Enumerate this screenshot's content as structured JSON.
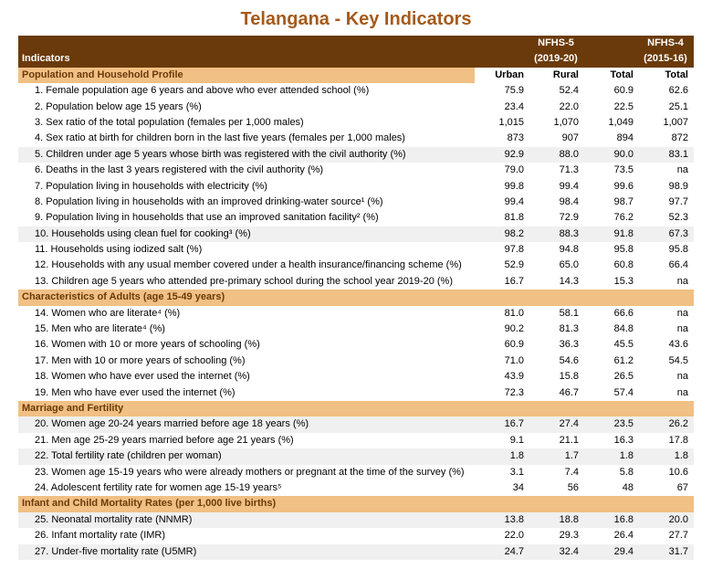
{
  "colors": {
    "title": "#a55a1a",
    "header_bg": "#6b3a0a",
    "header_fg": "#ffffff",
    "section_bg": "#f0c084",
    "section_fg": "#6b3a0a",
    "shade_bg": "#f0f0f0"
  },
  "title": "Telangana - Key Indicators",
  "header": {
    "indicators_label": "Indicators",
    "nfhs5": "NFHS-5",
    "nfhs5_year": "(2019-20)",
    "nfhs4": "NFHS-4",
    "nfhs4_year": "(2015-16)",
    "cols": {
      "urban": "Urban",
      "rural": "Rural",
      "total5": "Total",
      "total4": "Total"
    }
  },
  "sections": [
    {
      "title": "Population and Household Profile",
      "rows": [
        {
          "label": "1. Female population age 6 years and above who ever attended school (%)",
          "urban": "75.9",
          "rural": "52.4",
          "total5": "60.9",
          "total4": "62.6",
          "shade": false
        },
        {
          "label": "2. Population below age 15 years (%)",
          "urban": "23.4",
          "rural": "22.0",
          "total5": "22.5",
          "total4": "25.1",
          "shade": false
        },
        {
          "label": "3. Sex ratio of the total population (females per 1,000 males)",
          "urban": "1,015",
          "rural": "1,070",
          "total5": "1,049",
          "total4": "1,007",
          "shade": false
        },
        {
          "label": "4. Sex ratio at birth for children born in the last five years (females per 1,000 males)",
          "urban": "873",
          "rural": "907",
          "total5": "894",
          "total4": "872",
          "shade": false
        },
        {
          "label": "5. Children under age 5 years whose birth was registered with the civil authority (%)",
          "urban": "92.9",
          "rural": "88.0",
          "total5": "90.0",
          "total4": "83.1",
          "shade": true
        },
        {
          "label": "6. Deaths in the last 3 years registered with the civil authority (%)",
          "urban": "79.0",
          "rural": "71.3",
          "total5": "73.5",
          "total4": "na",
          "shade": false
        },
        {
          "label": "7. Population living in households with electricity (%)",
          "urban": "99.8",
          "rural": "99.4",
          "total5": "99.6",
          "total4": "98.9",
          "shade": false
        },
        {
          "label": "8. Population living in households with an improved drinking-water source¹ (%)",
          "urban": "99.4",
          "rural": "98.4",
          "total5": "98.7",
          "total4": "97.7",
          "shade": false
        },
        {
          "label": "9. Population living in households that use an improved sanitation facility² (%)",
          "urban": "81.8",
          "rural": "72.9",
          "total5": "76.2",
          "total4": "52.3",
          "shade": false
        },
        {
          "label": "10. Households using clean fuel for cooking³ (%)",
          "urban": "98.2",
          "rural": "88.3",
          "total5": "91.8",
          "total4": "67.3",
          "shade": true
        },
        {
          "label": "11. Households using iodized salt (%)",
          "urban": "97.8",
          "rural": "94.8",
          "total5": "95.8",
          "total4": "95.8",
          "shade": false
        },
        {
          "label": "12. Households with any usual member covered under a health insurance/financing scheme (%)",
          "urban": "52.9",
          "rural": "65.0",
          "total5": "60.8",
          "total4": "66.4",
          "shade": false
        },
        {
          "label": "13. Children age 5 years who attended pre-primary school during the school year 2019-20 (%)",
          "urban": "16.7",
          "rural": "14.3",
          "total5": "15.3",
          "total4": "na",
          "shade": false
        }
      ]
    },
    {
      "title": "Characteristics of Adults (age 15-49 years)",
      "rows": [
        {
          "label": "14. Women who are literate⁴ (%)",
          "urban": "81.0",
          "rural": "58.1",
          "total5": "66.6",
          "total4": "na",
          "shade": false
        },
        {
          "label": "15. Men who are literate⁴ (%)",
          "urban": "90.2",
          "rural": "81.3",
          "total5": "84.8",
          "total4": "na",
          "shade": false
        },
        {
          "label": "16. Women with 10 or more years of schooling (%)",
          "urban": "60.9",
          "rural": "36.3",
          "total5": "45.5",
          "total4": "43.6",
          "shade": false
        },
        {
          "label": "17. Men with 10 or more years of schooling (%)",
          "urban": "71.0",
          "rural": "54.6",
          "total5": "61.2",
          "total4": "54.5",
          "shade": false
        },
        {
          "label": "18. Women who have ever used the internet (%)",
          "urban": "43.9",
          "rural": "15.8",
          "total5": "26.5",
          "total4": "na",
          "shade": false
        },
        {
          "label": "19. Men who have ever used the internet (%)",
          "urban": "72.3",
          "rural": "46.7",
          "total5": "57.4",
          "total4": "na",
          "shade": false
        }
      ]
    },
    {
      "title": "Marriage and Fertility",
      "rows": [
        {
          "label": "20. Women age 20-24 years married before age 18 years (%)",
          "urban": "16.7",
          "rural": "27.4",
          "total5": "23.5",
          "total4": "26.2",
          "shade": true
        },
        {
          "label": "21. Men age 25-29 years married before age 21 years (%)",
          "urban": "9.1",
          "rural": "21.1",
          "total5": "16.3",
          "total4": "17.8",
          "shade": false
        },
        {
          "label": "22. Total fertility rate (children per woman)",
          "urban": "1.8",
          "rural": "1.7",
          "total5": "1.8",
          "total4": "1.8",
          "shade": true
        },
        {
          "label": "23. Women age 15-19 years who were already mothers or pregnant at the time of the survey (%)",
          "urban": "3.1",
          "rural": "7.4",
          "total5": "5.8",
          "total4": "10.6",
          "shade": false
        },
        {
          "label": "24. Adolescent fertility rate for women age 15-19 years⁵",
          "urban": "34",
          "rural": "56",
          "total5": "48",
          "total4": "67",
          "shade": false
        }
      ]
    },
    {
      "title": "Infant and Child Mortality Rates (per 1,000 live births)",
      "rows": [
        {
          "label": "25. Neonatal mortality rate (NNMR)",
          "urban": "13.8",
          "rural": "18.8",
          "total5": "16.8",
          "total4": "20.0",
          "shade": true
        },
        {
          "label": "26. Infant mortality rate (IMR)",
          "urban": "22.0",
          "rural": "29.3",
          "total5": "26.4",
          "total4": "27.7",
          "shade": false
        },
        {
          "label": "27. Under-five mortality rate (U5MR)",
          "urban": "24.7",
          "rural": "32.4",
          "total5": "29.4",
          "total4": "31.7",
          "shade": true
        }
      ]
    }
  ]
}
